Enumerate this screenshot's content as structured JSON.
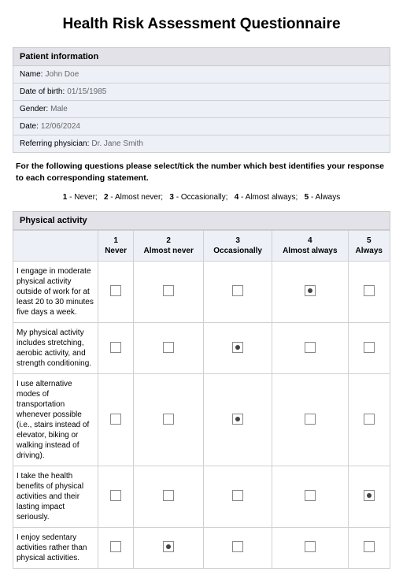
{
  "title": "Health Risk Assessment Questionnaire",
  "patient_section": {
    "header": "Patient information",
    "fields": [
      {
        "label": "Name:",
        "value": "John Doe"
      },
      {
        "label": "Date of birth:",
        "value": "01/15/1985"
      },
      {
        "label": "Gender:",
        "value": "Male"
      },
      {
        "label": "Date:",
        "value": "12/06/2024"
      },
      {
        "label": "Referring physician:",
        "value": "Dr. Jane Smith"
      }
    ]
  },
  "instructions": "For the following questions please select/tick the number which best identifies your response to each corresponding statement.",
  "legend": {
    "items": [
      {
        "num": "1",
        "text": "Never"
      },
      {
        "num": "2",
        "text": "Almost never"
      },
      {
        "num": "3",
        "text": "Occasionally"
      },
      {
        "num": "4",
        "text": "Almost always"
      },
      {
        "num": "5",
        "text": "Always"
      }
    ]
  },
  "activity_section": {
    "header": "Physical activity",
    "columns": [
      {
        "num": "1",
        "label": "Never"
      },
      {
        "num": "2",
        "label": "Almost never"
      },
      {
        "num": "3",
        "label": "Occasionally"
      },
      {
        "num": "4",
        "label": "Almost always"
      },
      {
        "num": "5",
        "label": "Always"
      }
    ],
    "questions": [
      {
        "text": "I engage in moderate physical activity outside of work for at least 20 to 30 minutes five days a week.",
        "selected": 4
      },
      {
        "text": "My physical activity includes stretching, aerobic activity, and strength conditioning.",
        "selected": 3
      },
      {
        "text": "I use alternative modes of transportation whenever possible (i.e., stairs instead of elevator, biking or walking instead of driving).",
        "selected": 3
      },
      {
        "text": "I take the health benefits of physical activities and their lasting impact seriously.",
        "selected": 5
      },
      {
        "text": "I enjoy sedentary activities rather than physical activities.",
        "selected": 2
      }
    ]
  },
  "colors": {
    "section_header_bg": "#e2e2e8",
    "info_row_bg": "#eef0f8",
    "border": "#d0d0d0",
    "value_text": "#666666",
    "checkbox_border": "#888888",
    "checkbox_dot": "#444444"
  }
}
